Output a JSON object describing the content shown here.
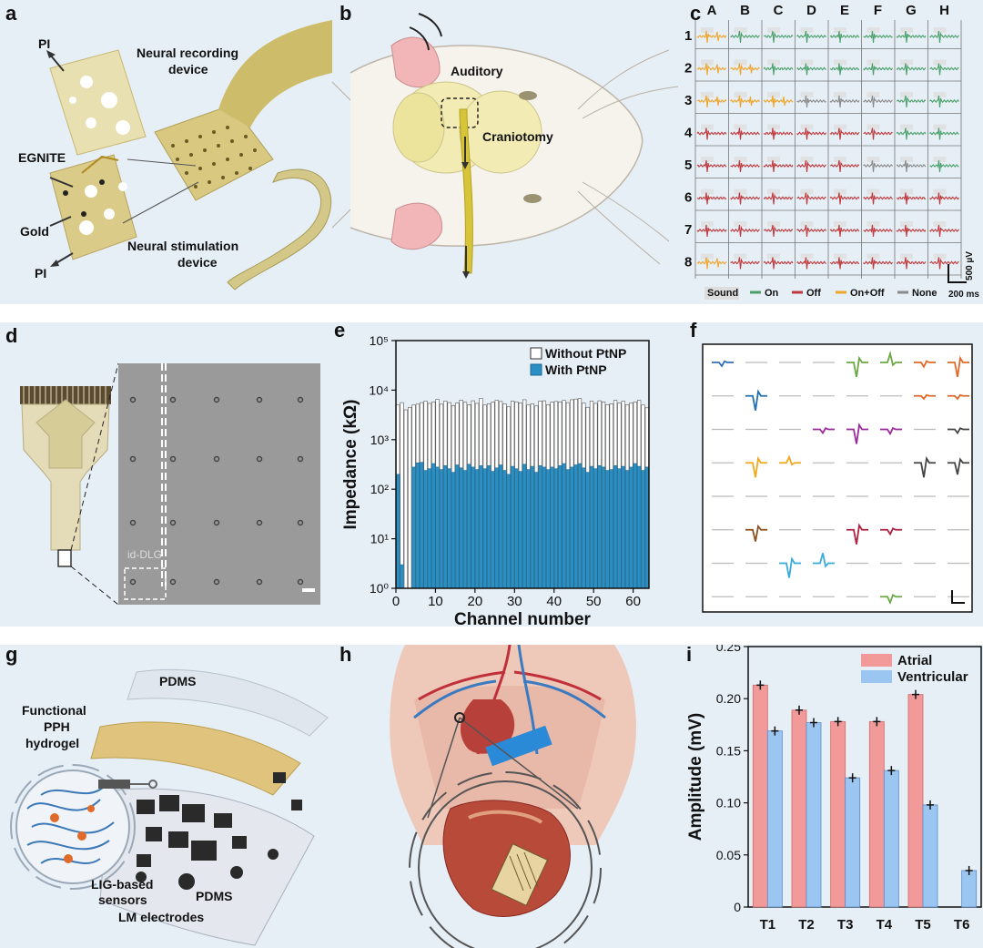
{
  "panel_labels": {
    "a": "a",
    "b": "b",
    "c": "c",
    "d": "d",
    "e": "e",
    "f": "f",
    "g": "g",
    "h": "h",
    "i": "i"
  },
  "panel_a": {
    "pi_top": "PI",
    "egnite": "EGNITE",
    "gold": "Gold",
    "pi_bottom": "PI",
    "recording": "Neural recording",
    "recording2": "device",
    "stimulation": "Neural stimulation",
    "stimulation2": "device"
  },
  "panel_b": {
    "auditory": "Auditory",
    "craniotomy": "Craniotomy"
  },
  "panel_c": {
    "columns": [
      "A",
      "B",
      "C",
      "D",
      "E",
      "F",
      "G",
      "H"
    ],
    "rows": [
      "1",
      "2",
      "3",
      "4",
      "5",
      "6",
      "7",
      "8"
    ],
    "grid": [
      [
        "O",
        "N",
        "N",
        "N",
        "N",
        "N",
        "N",
        "N"
      ],
      [
        "O",
        "O",
        "N",
        "N",
        "N",
        "N",
        "N",
        "N"
      ],
      [
        "O",
        "O",
        "O",
        "G",
        "G",
        "G",
        "N",
        "N"
      ],
      [
        "F",
        "F",
        "F",
        "F",
        "F",
        "F",
        "N",
        "N"
      ],
      [
        "F",
        "F",
        "F",
        "F",
        "F",
        "G",
        "G",
        "N"
      ],
      [
        "F",
        "F",
        "F",
        "F",
        "F",
        "F",
        "F",
        "F"
      ],
      [
        "F",
        "F",
        "F",
        "F",
        "F",
        "F",
        "F",
        "F"
      ],
      [
        "O",
        "F",
        "F",
        "F",
        "F",
        "F",
        "F",
        "F"
      ]
    ],
    "legend": {
      "sound": "Sound",
      "on": "On",
      "off": "Off",
      "onoff": "On+Off",
      "none": "None"
    },
    "colors": {
      "N": "#4aa06a",
      "F": "#c0393b",
      "O": "#f0a52a",
      "G": "#8a8a8a"
    },
    "scale_v": "500 µV",
    "scale_t": "200 ms"
  },
  "panel_d": {
    "label": "id-DLG"
  },
  "panel_e": {
    "chart_data": {
      "type": "bar",
      "xlabel": "Channel number",
      "ylabel": "Impedance (kΩ)",
      "yscale": "log",
      "ylim": [
        1,
        100000
      ],
      "xlim": [
        0,
        64
      ],
      "xticks": [
        0,
        10,
        20,
        30,
        40,
        50,
        60
      ],
      "yticks": [
        "10⁰",
        "10¹",
        "10²",
        "10³",
        "10⁴",
        "10⁵"
      ],
      "series": [
        {
          "name": "Without PtNP",
          "color": "#ffffff",
          "values": [
            5000,
            5600,
            4000,
            4500,
            5000,
            5200,
            5600,
            6000,
            5400,
            5800,
            6500,
            5200,
            6000,
            5600,
            4900,
            5500,
            6300,
            5700,
            5100,
            6100,
            5400,
            6800,
            5000,
            5300,
            5700,
            6200,
            5900,
            5300,
            4600,
            6000,
            5800,
            5500,
            6400,
            5000,
            5300,
            4800,
            6000,
            6100,
            5100,
            5700,
            5900,
            5800,
            6200,
            5600,
            6400,
            6600,
            6800,
            5500,
            4500,
            6000,
            5400,
            6100,
            5800,
            5100,
            5300,
            6200,
            5500,
            6000,
            5100,
            5500,
            5800,
            6200,
            5000,
            4400
          ]
        },
        {
          "name": "With PtNP",
          "color": "#2c8fc4",
          "values": [
            200,
            3,
            1,
            1,
            280,
            340,
            350,
            240,
            260,
            330,
            280,
            250,
            300,
            260,
            220,
            310,
            270,
            240,
            320,
            280,
            250,
            300,
            260,
            300,
            230,
            270,
            310,
            240,
            200,
            290,
            260,
            230,
            320,
            250,
            290,
            220,
            300,
            280,
            250,
            280,
            260,
            300,
            330,
            250,
            280,
            310,
            330,
            270,
            220,
            290,
            260,
            300,
            280,
            240,
            250,
            300,
            260,
            290,
            240,
            280,
            330,
            290,
            240,
            280
          ]
        }
      ]
    }
  },
  "panel_f": {
    "rows": 8,
    "cols": 8,
    "spikes": [
      {
        "r": 0,
        "c": 0,
        "color": "#2e6fb7",
        "amp": 0.25
      },
      {
        "r": 0,
        "c": 4,
        "color": "#6aa842",
        "amp": 1
      },
      {
        "r": 0,
        "c": 5,
        "color": "#6aa842",
        "amp": -0.6
      },
      {
        "r": 0,
        "c": 6,
        "color": "#e0692a",
        "amp": 0.3
      },
      {
        "r": 0,
        "c": 7,
        "color": "#e0692a",
        "amp": 1
      },
      {
        "r": 1,
        "c": 1,
        "color": "#1f6fb2",
        "amp": 1
      },
      {
        "r": 1,
        "c": 6,
        "color": "#e0692a",
        "amp": 0.2
      },
      {
        "r": 1,
        "c": 7,
        "color": "#e0692a",
        "amp": 0.2
      },
      {
        "r": 2,
        "c": 3,
        "color": "#9b2a9b",
        "amp": 0.25
      },
      {
        "r": 2,
        "c": 4,
        "color": "#9b2a9b",
        "amp": 1
      },
      {
        "r": 2,
        "c": 5,
        "color": "#9b2a9b",
        "amp": 0.3
      },
      {
        "r": 2,
        "c": 7,
        "color": "#444444",
        "amp": 0.25
      },
      {
        "r": 3,
        "c": 1,
        "color": "#f0a820",
        "amp": 1
      },
      {
        "r": 3,
        "c": 2,
        "color": "#f0a820",
        "amp": -0.4
      },
      {
        "r": 3,
        "c": 6,
        "color": "#444444",
        "amp": 1
      },
      {
        "r": 3,
        "c": 7,
        "color": "#444444",
        "amp": 0.8
      },
      {
        "r": 5,
        "c": 1,
        "color": "#8a5020",
        "amp": 0.8
      },
      {
        "r": 5,
        "c": 4,
        "color": "#b02040",
        "amp": 1
      },
      {
        "r": 5,
        "c": 5,
        "color": "#b02040",
        "amp": 0.3
      },
      {
        "r": 6,
        "c": 2,
        "color": "#3aaad8",
        "amp": 1
      },
      {
        "r": 6,
        "c": 3,
        "color": "#3aaad8",
        "amp": -0.7
      },
      {
        "r": 7,
        "c": 5,
        "color": "#6aa842",
        "amp": 0.4
      }
    ]
  },
  "panel_g": {
    "pdms_top": "PDMS",
    "hydrogel1": "Functional",
    "hydrogel2": "PPH",
    "hydrogel3": "hydrogel",
    "lig1": "LIG-based",
    "lig2": "sensors",
    "pdms_bottom": "PDMS",
    "lm": "LM electrodes"
  },
  "panel_i": {
    "chart_data": {
      "type": "bar",
      "categories": [
        "T1",
        "T2",
        "T3",
        "T4",
        "T5",
        "T6"
      ],
      "ylabel": "Amplitude (mV)",
      "ylim": [
        0,
        0.25
      ],
      "yticks": [
        "0",
        "0.05",
        "0.10",
        "0.15",
        "0.20",
        "0.25"
      ],
      "legend": "top-right",
      "series": [
        {
          "name": "Atrial",
          "color": "#f29a9a",
          "values": [
            0.213,
            0.189,
            0.178,
            0.178,
            0.204,
            0
          ]
        },
        {
          "name": "Ventricular",
          "color": "#9cc6f2",
          "values": [
            0.169,
            0.177,
            0.124,
            0.131,
            0.098,
            0.035
          ]
        }
      ]
    }
  }
}
